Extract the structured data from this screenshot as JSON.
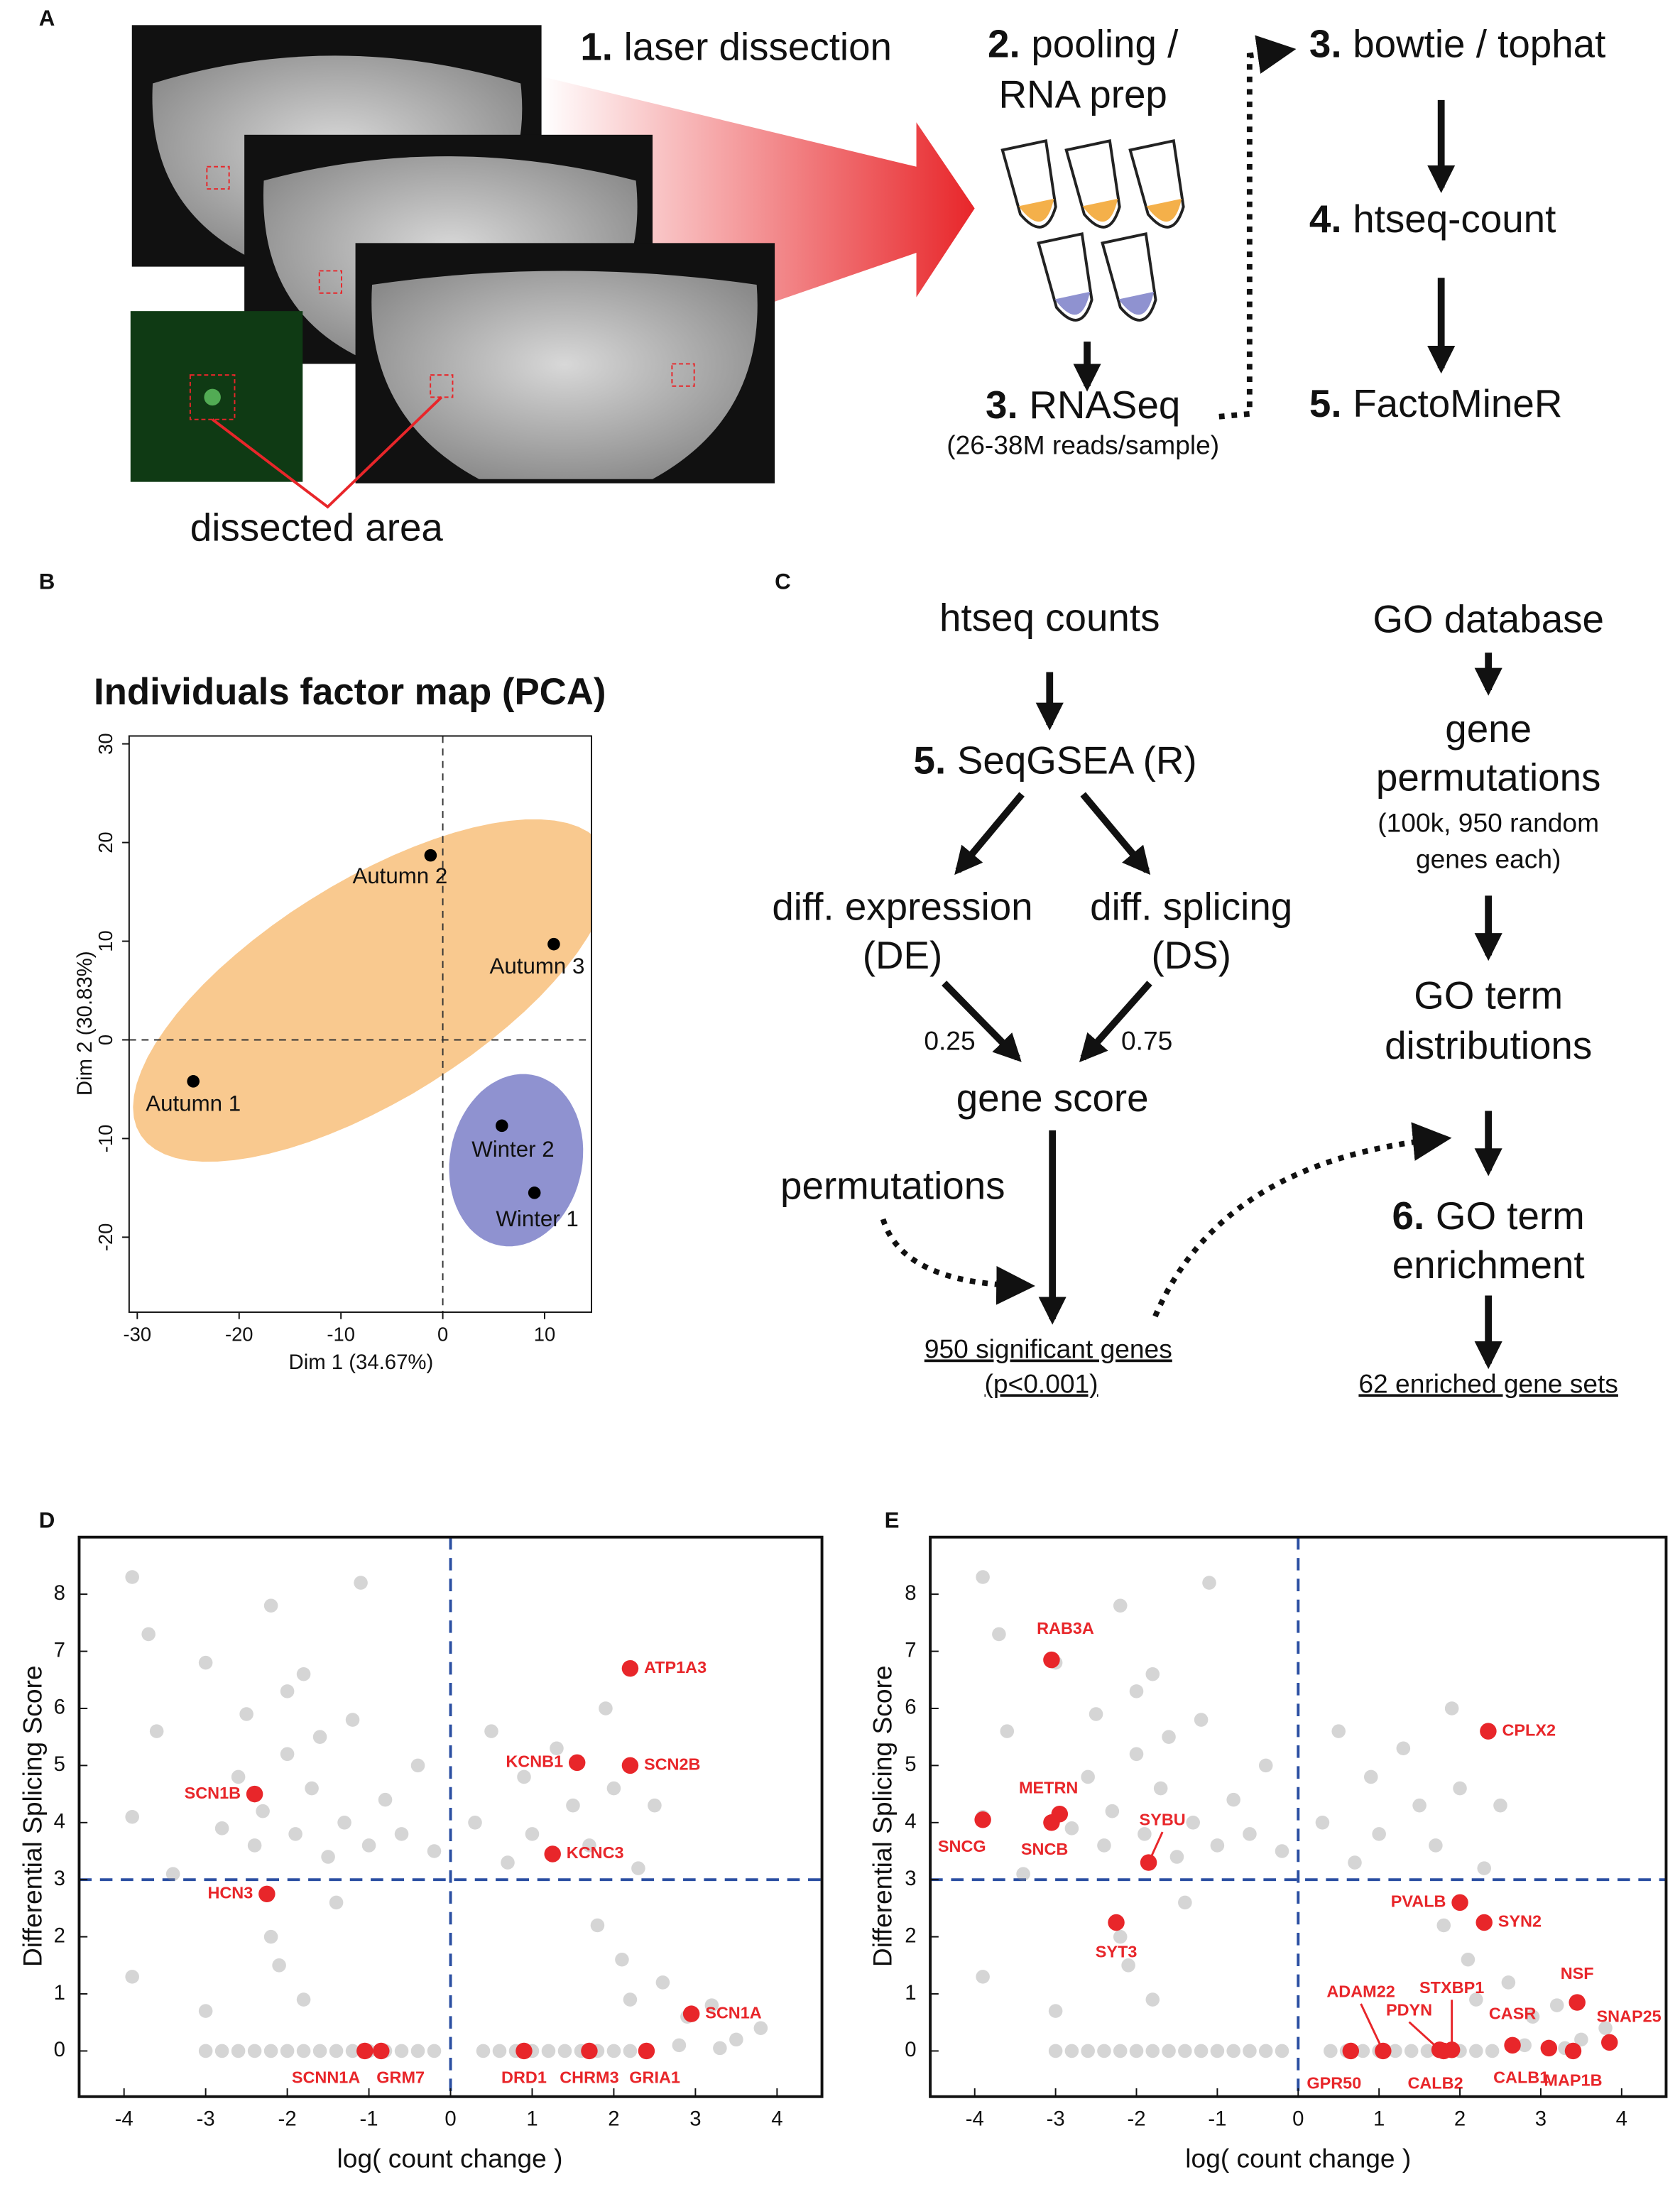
{
  "panel_labels": [
    "A",
    "B",
    "C",
    "D",
    "E"
  ],
  "panel_a": {
    "steps": [
      {
        "num": "1.",
        "text": "laser dissection"
      },
      {
        "num": "2.",
        "text": "pooling /",
        "text2": "RNA prep"
      },
      {
        "num": "3.",
        "text": "RNASeq",
        "note": "(26-38M reads/sample)"
      },
      {
        "num": "3.",
        "text": "bowtie / tophat"
      },
      {
        "num": "4.",
        "text": "htseq-count"
      },
      {
        "num": "5.",
        "text": "FactoMineR"
      }
    ],
    "dissected_label": "dissected area"
  },
  "panel_c": {
    "input": "htseq counts",
    "tool": {
      "num": "5.",
      "text": "SeqGSEA (R)"
    },
    "de": [
      "diff. expression",
      "(DE)"
    ],
    "ds": [
      "diff. splicing",
      "(DS)"
    ],
    "weights": [
      "0.25",
      "0.75"
    ],
    "score": "gene score",
    "permutations": "permutations",
    "result": [
      "950 significant genes",
      "(p<0.001)"
    ],
    "go_database": "GO database",
    "gene_permutations": [
      "gene",
      "permutations"
    ],
    "gene_perm_note": [
      "(100k, 950 random",
      "genes each)"
    ],
    "go_distributions": [
      "GO term",
      "distributions"
    ],
    "enrichment": {
      "num": "6.",
      "lines": [
        "GO term",
        "enrichment"
      ]
    },
    "final": "62 enriched gene sets"
  },
  "chart_data": [
    {
      "type": "scatter",
      "title": "Individuals factor map (PCA)",
      "x_label": "Dim 1 (34.67%)",
      "y_label": "Dim 2 (30.83%)",
      "xlim": [
        -30.8,
        14.6
      ],
      "ylim": [
        -27.6,
        30.8
      ],
      "xticks": [
        -30,
        -20,
        -10,
        0,
        10
      ],
      "yticks": [
        -20,
        -10,
        0,
        10,
        20,
        30
      ],
      "ref_lines": {
        "x": [
          0
        ],
        "y": [
          0
        ]
      },
      "ellipses": [
        {
          "color": "#f9c98f",
          "center": [
            -7,
            5
          ],
          "radii": [
            27,
            11
          ],
          "angle": 33
        },
        {
          "color": "#8f92d0",
          "center": [
            7.2,
            -12.2
          ],
          "radii": [
            6.5,
            8.8
          ],
          "angle": -10
        }
      ],
      "series": [
        {
          "color": "#000000",
          "x": [
            -24.5,
            -1.2,
            10.9,
            5.8,
            9
          ],
          "y": [
            -4.2,
            18.7,
            9.7,
            -8.7,
            -15.5
          ],
          "point_labels": [
            "Autumn 1",
            "Autumn 2",
            "Autumn 3",
            "Winter 2",
            "Winter 1"
          ]
        }
      ]
    },
    {
      "type": "scatter",
      "x_label": "log( count change )",
      "y_label": "Differential Splicing Score",
      "xlim": [
        -4.55,
        4.55
      ],
      "ylim": [
        -0.8,
        9.0
      ],
      "xticks": [
        -4,
        -3,
        -2,
        -1,
        0,
        1,
        2,
        3,
        4
      ],
      "yticks": [
        0,
        1,
        2,
        3,
        4,
        5,
        6,
        7,
        8
      ],
      "ref_lines": {
        "x": [
          0
        ],
        "y": [
          3
        ]
      },
      "series": [
        {
          "color": "#888888",
          "alpha": 0.35,
          "x": [
            -3.9,
            -3.7,
            -3.9,
            -3.9,
            -3.6,
            -3.4,
            -3.0,
            -3.0,
            -2.8,
            -2.6,
            -2.5,
            -2.4,
            -2.3,
            -2.2,
            -2.2,
            -2.1,
            -2.0,
            -2.0,
            -1.9,
            -1.8,
            -1.8,
            -1.7,
            -1.6,
            -1.5,
            -1.4,
            -1.3,
            -1.2,
            -1.1,
            -1.0,
            -0.8,
            -0.6,
            -0.4,
            -0.2,
            0.3,
            0.5,
            0.7,
            0.9,
            1.0,
            1.3,
            1.5,
            1.7,
            1.8,
            1.9,
            2.0,
            2.1,
            2.2,
            2.3,
            2.5,
            2.6,
            2.9,
            3.2,
            3.5,
            3.8,
            2.8,
            3.3,
            -3.0,
            -2.8,
            -2.6,
            -2.4,
            -2.2,
            -2.0,
            -1.8,
            -1.6,
            -1.4,
            -1.2,
            -1.0,
            -0.8,
            -0.6,
            -0.4,
            -0.2,
            0.4,
            0.6,
            0.8,
            1.0,
            1.2,
            1.4,
            1.6,
            1.8,
            2.0,
            2.2,
            2.4
          ],
          "y": [
            8.3,
            7.3,
            1.3,
            4.1,
            5.6,
            3.1,
            6.8,
            0.7,
            3.9,
            4.8,
            5.9,
            3.6,
            4.2,
            7.8,
            2.0,
            1.5,
            6.3,
            5.2,
            3.8,
            6.6,
            0.9,
            4.6,
            5.5,
            3.4,
            2.6,
            4.0,
            5.8,
            8.2,
            3.6,
            4.4,
            3.8,
            5.0,
            3.5,
            4.0,
            5.6,
            3.3,
            4.8,
            3.8,
            5.3,
            4.3,
            3.6,
            2.2,
            6.0,
            4.6,
            1.6,
            0.9,
            3.2,
            4.3,
            1.2,
            0.6,
            0.8,
            0.2,
            0.4,
            0.1,
            0.05,
            0,
            0,
            0,
            0,
            0,
            0,
            0,
            0,
            0,
            0,
            0,
            0,
            0,
            0,
            0,
            0,
            0,
            0,
            0,
            0,
            0,
            0,
            0,
            0,
            0,
            0
          ]
        },
        {
          "color": "#e8262a",
          "x": [
            -2.4,
            -2.25,
            2.2,
            1.55,
            2.2,
            1.25,
            2.95,
            -1.05,
            -0.85,
            0.9,
            1.7,
            2.4
          ],
          "y": [
            4.5,
            2.75,
            6.7,
            5.05,
            5.0,
            3.45,
            0.65,
            0,
            0,
            0,
            0,
            0
          ],
          "point_labels": [
            "SCN1B",
            "HCN3",
            "ATP1A3",
            "KCNB1",
            "SCN2B",
            "KCNC3",
            "SCN1A",
            "SCNN1A",
            "GRM7",
            "DRD1",
            "CHRM3",
            "GRIA1"
          ]
        }
      ]
    },
    {
      "type": "scatter",
      "x_label": "log( count change )",
      "y_label": "Differential Splicing Score",
      "xlim": [
        -4.55,
        4.55
      ],
      "ylim": [
        -0.8,
        9.0
      ],
      "xticks": [
        -4,
        -3,
        -2,
        -1,
        0,
        1,
        2,
        3,
        4
      ],
      "yticks": [
        0,
        1,
        2,
        3,
        4,
        5,
        6,
        7,
        8
      ],
      "ref_lines": {
        "x": [
          0
        ],
        "y": [
          3
        ]
      },
      "series": [
        {
          "color": "#888888",
          "alpha": 0.35,
          "x": [
            -3.9,
            -3.7,
            -3.9,
            -3.9,
            -3.6,
            -3.4,
            -3.0,
            -3.0,
            -2.8,
            -2.6,
            -2.5,
            -2.4,
            -2.3,
            -2.2,
            -2.2,
            -2.1,
            -2.0,
            -2.0,
            -1.9,
            -1.8,
            -1.8,
            -1.7,
            -1.6,
            -1.5,
            -1.4,
            -1.3,
            -1.2,
            -1.1,
            -1.0,
            -0.8,
            -0.6,
            -0.4,
            -0.2,
            0.3,
            0.5,
            0.7,
            0.9,
            1.0,
            1.3,
            1.5,
            1.7,
            1.8,
            1.9,
            2.0,
            2.1,
            2.2,
            2.3,
            2.5,
            2.6,
            2.9,
            3.2,
            3.5,
            3.8,
            2.8,
            3.3,
            -3.0,
            -2.8,
            -2.6,
            -2.4,
            -2.2,
            -2.0,
            -1.8,
            -1.6,
            -1.4,
            -1.2,
            -1.0,
            -0.8,
            -0.6,
            -0.4,
            -0.2,
            0.4,
            0.6,
            0.8,
            1.0,
            1.2,
            1.4,
            1.6,
            1.8,
            2.0,
            2.2,
            2.4
          ],
          "y": [
            8.3,
            7.3,
            1.3,
            4.1,
            5.6,
            3.1,
            6.8,
            0.7,
            3.9,
            4.8,
            5.9,
            3.6,
            4.2,
            7.8,
            2.0,
            1.5,
            6.3,
            5.2,
            3.8,
            6.6,
            0.9,
            4.6,
            5.5,
            3.4,
            2.6,
            4.0,
            5.8,
            8.2,
            3.6,
            4.4,
            3.8,
            5.0,
            3.5,
            4.0,
            5.6,
            3.3,
            4.8,
            3.8,
            5.3,
            4.3,
            3.6,
            2.2,
            6.0,
            4.6,
            1.6,
            0.9,
            3.2,
            4.3,
            1.2,
            0.6,
            0.8,
            0.2,
            0.4,
            0.1,
            0.05,
            0,
            0,
            0,
            0,
            0,
            0,
            0,
            0,
            0,
            0,
            0,
            0,
            0,
            0,
            0,
            0,
            0,
            0,
            0,
            0,
            0,
            0,
            0,
            0,
            0,
            0
          ]
        },
        {
          "color": "#e8262a",
          "x": [
            -3.05,
            2.35,
            -3.9,
            -2.95,
            -3.05,
            -1.85,
            2.0,
            2.3,
            -2.25,
            3.45,
            3.85,
            2.65,
            3.4,
            3.1,
            1.9,
            1.75,
            1.8,
            1.05,
            0.65
          ],
          "y": [
            6.85,
            5.6,
            4.05,
            4.15,
            4.0,
            3.3,
            2.6,
            2.25,
            2.25,
            0.85,
            0.15,
            0.1,
            0.0,
            0.05,
            0.02,
            0.02,
            0,
            0,
            0
          ],
          "point_labels": [
            "RAB3A",
            "CPLX2",
            "SNCG",
            "METRN",
            "SNCB",
            "SYBU",
            "PVALB",
            "SYN2",
            "SYT3",
            "NSF",
            "SNAP25",
            "CASR",
            "MAP1B",
            "CALB1",
            "STXBP1",
            "PDYN",
            "CALB2",
            "ADAM22",
            "GPR50"
          ]
        }
      ]
    }
  ]
}
